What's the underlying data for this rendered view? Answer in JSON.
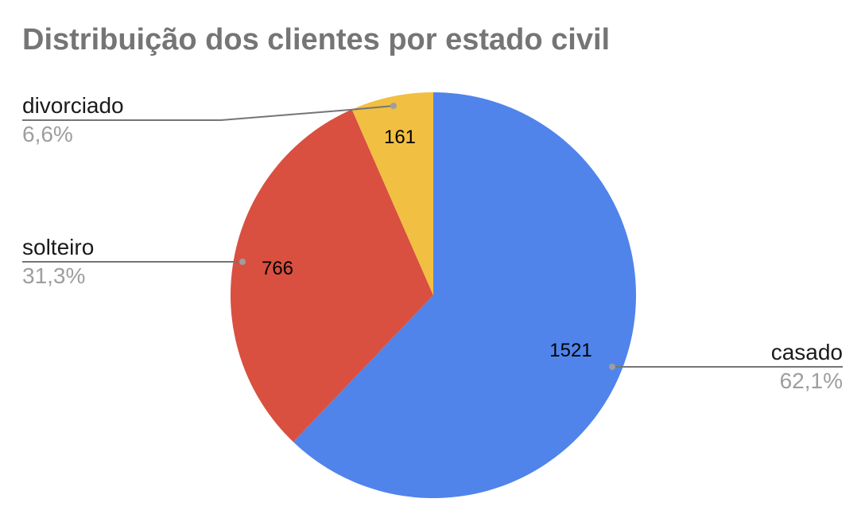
{
  "chart_data": {
    "type": "pie",
    "title": "Distribuição dos clientes por estado civil",
    "slices": [
      {
        "label": "casado",
        "value": 1521,
        "value_label": "1521",
        "percent_label": "62,1%",
        "color": "#5084EB"
      },
      {
        "label": "solteiro",
        "value": 766,
        "value_label": "766",
        "percent_label": "31,3%",
        "color": "#D95040"
      },
      {
        "label": "divorciado",
        "value": 161,
        "value_label": "161",
        "percent_label": "6,6%",
        "color": "#F1BF42"
      }
    ],
    "start_angle_deg": 0,
    "direction": "clockwise",
    "legend": "leader-lines"
  }
}
